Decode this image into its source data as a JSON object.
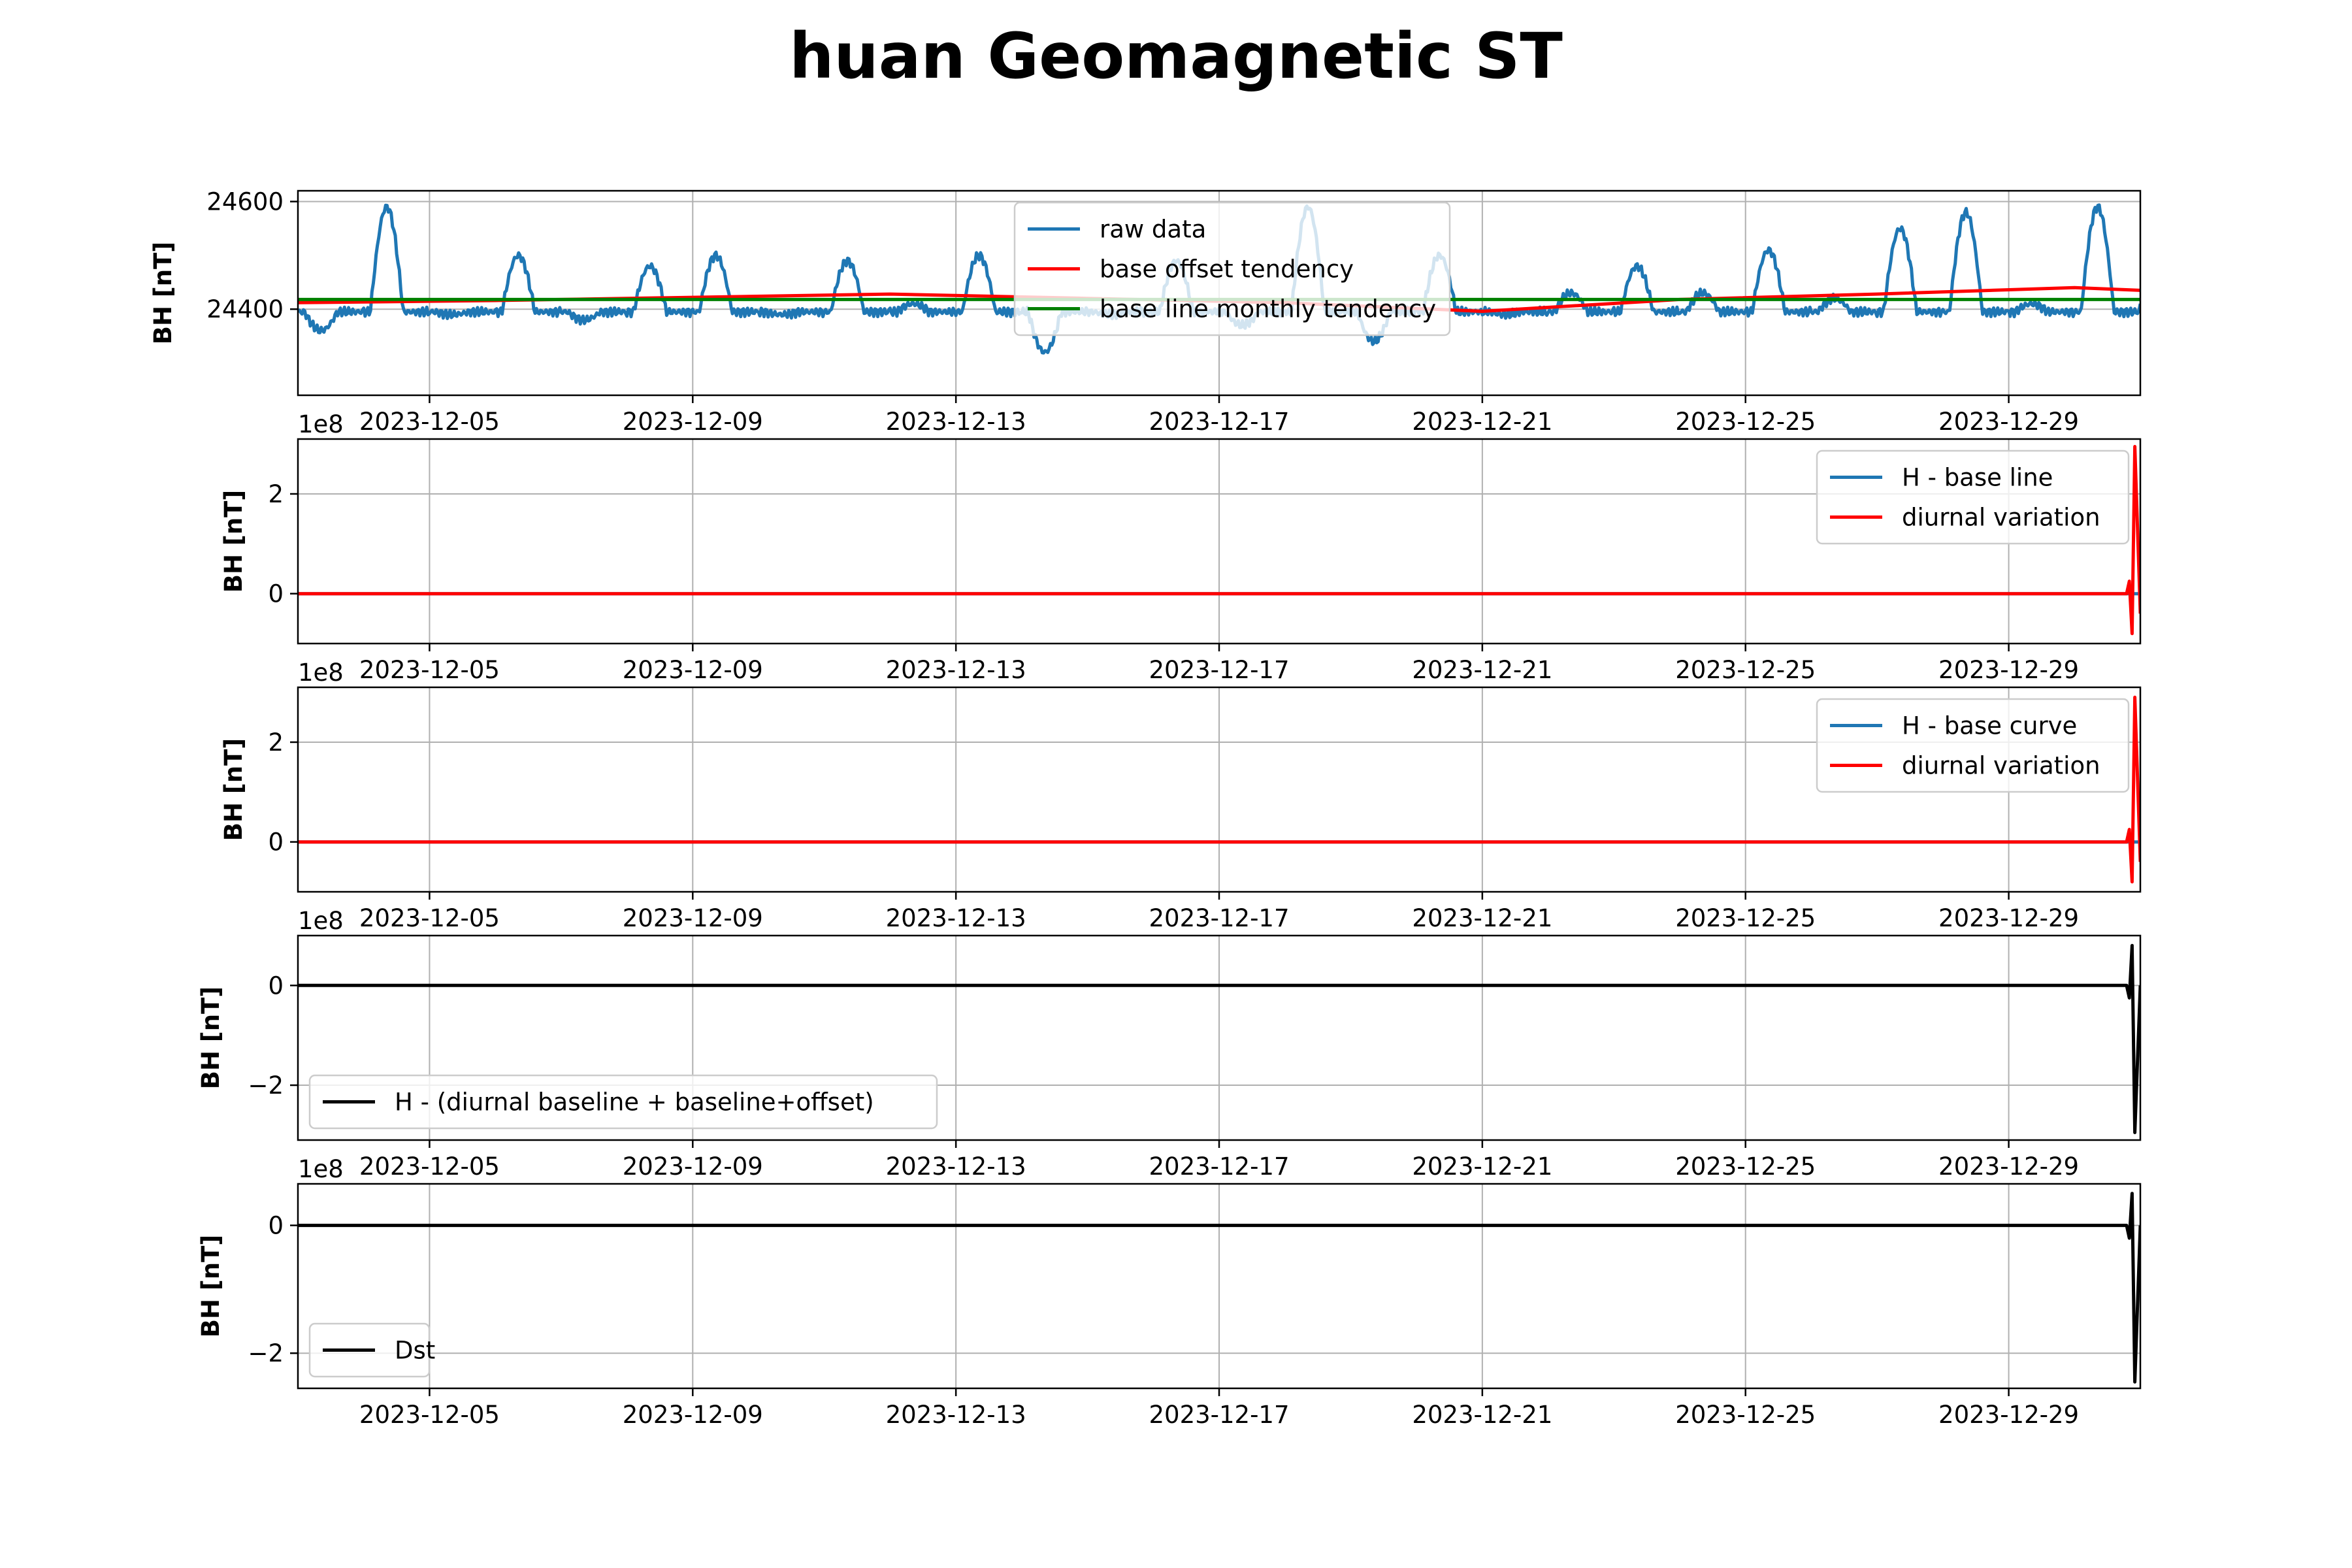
{
  "figure": {
    "title": "huan Geomagnetic ST"
  },
  "chart_data": [
    {
      "type": "line",
      "ylabel": "BH [nT]",
      "xlim": [
        "2023-12-03",
        "2023-12-31"
      ],
      "x_ticks": [
        "2023-12-05",
        "2023-12-09",
        "2023-12-13",
        "2023-12-17",
        "2023-12-21",
        "2023-12-25",
        "2023-12-29"
      ],
      "ylim": [
        24240,
        24620
      ],
      "y_ticks": [
        24400,
        24600
      ],
      "y_tick_labels": [
        "24400",
        "24600"
      ],
      "y_offset_label": "",
      "grid": true,
      "legend": {
        "placement": "upper-center",
        "entries": [
          "raw data",
          "base offset tendency",
          "base line monthly tendency"
        ]
      },
      "series": [
        {
          "name": "raw data",
          "color": "#1f77b4",
          "x": [
            "2023-12-03",
            "2023-12-04",
            "2023-12-05",
            "2023-12-06",
            "2023-12-07",
            "2023-12-08",
            "2023-12-09",
            "2023-12-10",
            "2023-12-11",
            "2023-12-12",
            "2023-12-13",
            "2023-12-14",
            "2023-12-15",
            "2023-12-16",
            "2023-12-17",
            "2023-12-18",
            "2023-12-19",
            "2023-12-20",
            "2023-12-21",
            "2023-12-22",
            "2023-12-23",
            "2023-12-24",
            "2023-12-25",
            "2023-12-26",
            "2023-12-27",
            "2023-12-28",
            "2023-12-29",
            "2023-12-30",
            "2023-12-31"
          ],
          "values": [
            24370,
            24600,
            24400,
            24510,
            24390,
            24490,
            24510,
            24400,
            24500,
            24420,
            24510,
            24330,
            24400,
            24500,
            24380,
            24600,
            24350,
            24510,
            24400,
            24440,
            24490,
            24440,
            24520,
            24430,
            24560,
            24590,
            24420,
            24600,
            24410
          ],
          "value_notes": "each value is the approximate daily extreme of the oscillation"
        },
        {
          "name": "base offset tendency",
          "color": "#ff0000",
          "x": [
            "2023-12-03",
            "2023-12-06",
            "2023-12-09",
            "2023-12-12",
            "2023-12-15",
            "2023-12-18",
            "2023-12-21",
            "2023-12-24",
            "2023-12-27",
            "2023-12-30",
            "2023-12-31"
          ],
          "values": [
            24412,
            24416,
            24422,
            24428,
            24420,
            24412,
            24396,
            24418,
            24428,
            24440,
            24435
          ]
        },
        {
          "name": "base line monthly tendency",
          "color": "#008000",
          "x": [
            "2023-12-03",
            "2023-12-31"
          ],
          "values": [
            24418,
            24418
          ]
        }
      ]
    },
    {
      "type": "line",
      "ylabel": "BH [nT]",
      "xlim": [
        "2023-12-03",
        "2023-12-31"
      ],
      "x_ticks": [
        "2023-12-05",
        "2023-12-09",
        "2023-12-13",
        "2023-12-17",
        "2023-12-21",
        "2023-12-25",
        "2023-12-29"
      ],
      "ylim": [
        -1.0,
        3.1
      ],
      "y_ticks": [
        0,
        2
      ],
      "y_tick_labels": [
        "0",
        "2"
      ],
      "y_offset_label": "1e8",
      "grid": true,
      "legend": {
        "placement": "upper-right",
        "entries": [
          "H - base line",
          "diurnal variation"
        ]
      },
      "series": [
        {
          "name": "H - base line",
          "color": "#1f77b4",
          "x": [
            "2023-12-03",
            "2023-12-30",
            "2023-12-30T20:00",
            "2023-12-31"
          ],
          "values": [
            0,
            0,
            0,
            0
          ]
        },
        {
          "name": "diurnal variation",
          "color": "#ff0000",
          "x": [
            "2023-12-03",
            "2023-12-30T19:00",
            "2023-12-30T20:00",
            "2023-12-30T21:00",
            "2023-12-30T22:00",
            "2023-12-31"
          ],
          "values": [
            0,
            0,
            0.25,
            -0.8,
            2.95,
            -0.4
          ]
        }
      ]
    },
    {
      "type": "line",
      "ylabel": "BH [nT]",
      "xlim": [
        "2023-12-03",
        "2023-12-31"
      ],
      "x_ticks": [
        "2023-12-05",
        "2023-12-09",
        "2023-12-13",
        "2023-12-17",
        "2023-12-21",
        "2023-12-25",
        "2023-12-29"
      ],
      "ylim": [
        -1.0,
        3.1
      ],
      "y_ticks": [
        0,
        2
      ],
      "y_tick_labels": [
        "0",
        "2"
      ],
      "y_offset_label": "1e8",
      "grid": true,
      "legend": {
        "placement": "upper-right",
        "entries": [
          "H - base curve",
          "diurnal variation"
        ]
      },
      "series": [
        {
          "name": "H - base curve",
          "color": "#1f77b4",
          "x": [
            "2023-12-03",
            "2023-12-31"
          ],
          "values": [
            0,
            0
          ]
        },
        {
          "name": "diurnal variation",
          "color": "#ff0000",
          "x": [
            "2023-12-03",
            "2023-12-30T19:00",
            "2023-12-30T20:00",
            "2023-12-30T21:00",
            "2023-12-30T22:00",
            "2023-12-31"
          ],
          "values": [
            0,
            0,
            0.25,
            -0.8,
            2.9,
            -0.4
          ]
        }
      ]
    },
    {
      "type": "line",
      "ylabel": "BH [nT]",
      "xlim": [
        "2023-12-03",
        "2023-12-31"
      ],
      "x_ticks": [
        "2023-12-05",
        "2023-12-09",
        "2023-12-13",
        "2023-12-17",
        "2023-12-21",
        "2023-12-25",
        "2023-12-29"
      ],
      "ylim": [
        -3.1,
        1.0
      ],
      "y_ticks": [
        -2,
        0
      ],
      "y_tick_labels": [
        "−2",
        "0"
      ],
      "y_offset_label": "1e8",
      "grid": true,
      "legend": {
        "placement": "lower-left",
        "entries": [
          "H - (diurnal baseline + baseline+offset)"
        ]
      },
      "series": [
        {
          "name": "H - (diurnal baseline + baseline+offset)",
          "color": "#000000",
          "x": [
            "2023-12-03",
            "2023-12-30T19:00",
            "2023-12-30T20:00",
            "2023-12-30T21:00",
            "2023-12-30T22:00",
            "2023-12-31"
          ],
          "values": [
            0,
            0,
            -0.25,
            0.8,
            -2.95,
            0
          ]
        }
      ]
    },
    {
      "type": "line",
      "ylabel": "BH [nT]",
      "xlim": [
        "2023-12-03",
        "2023-12-31"
      ],
      "x_ticks": [
        "2023-12-05",
        "2023-12-09",
        "2023-12-13",
        "2023-12-17",
        "2023-12-21",
        "2023-12-25",
        "2023-12-29"
      ],
      "ylim": [
        -2.55,
        0.65
      ],
      "y_ticks": [
        -2,
        0
      ],
      "y_tick_labels": [
        "−2",
        "0"
      ],
      "y_offset_label": "1e8",
      "grid": true,
      "legend": {
        "placement": "lower-left",
        "entries": [
          "Dst"
        ]
      },
      "series": [
        {
          "name": "Dst",
          "color": "#000000",
          "x": [
            "2023-12-03",
            "2023-12-30T19:00",
            "2023-12-30T20:00",
            "2023-12-30T21:00",
            "2023-12-30T22:00",
            "2023-12-31"
          ],
          "values": [
            0,
            0,
            -0.2,
            0.5,
            -2.45,
            0
          ]
        }
      ]
    }
  ]
}
